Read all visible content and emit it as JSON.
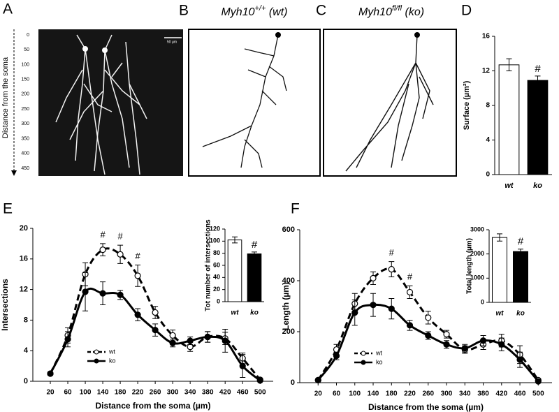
{
  "panels": {
    "A": {
      "label": "A",
      "axis_label": "Distance from the soma",
      "ticks": [
        0,
        50,
        100,
        150,
        200,
        250,
        300,
        350,
        400,
        450
      ],
      "scale_bar": "50 µm"
    },
    "B": {
      "label": "B",
      "title_gene": "Myh10",
      "title_sup": "+/+",
      "title_rest": " (wt)"
    },
    "C": {
      "label": "C",
      "title_gene": "Myh10",
      "title_sup": "fl/fl",
      "title_rest": " (ko)"
    }
  },
  "chart_data": [
    {
      "type": "bar",
      "panel": "D",
      "categories": [
        "wt",
        "ko"
      ],
      "values": [
        12.7,
        10.9
      ],
      "errors": [
        0.7,
        0.5
      ],
      "colors": [
        "#ffffff",
        "#000000"
      ],
      "ylim": [
        0,
        16
      ],
      "yticks": [
        0,
        4,
        8,
        12,
        16
      ],
      "ylabel": "Surface (µm²)",
      "annotations": [
        {
          "x": "ko",
          "text": "#"
        }
      ]
    },
    {
      "type": "line",
      "panel": "E",
      "x": [
        20,
        60,
        100,
        140,
        180,
        220,
        260,
        300,
        340,
        380,
        420,
        460,
        500
      ],
      "xlim": [
        -20,
        530
      ],
      "xticks": [
        20,
        60,
        100,
        140,
        180,
        220,
        260,
        300,
        340,
        380,
        420,
        460,
        500
      ],
      "ylim": [
        0,
        20
      ],
      "yticks": [
        0,
        4,
        8,
        12,
        16,
        20
      ],
      "xlabel": "Distance from the soma (µm)",
      "ylabel": "Intersections",
      "series": [
        {
          "name": "wt",
          "color": "#000000",
          "dashed": true,
          "marker_fill": "#ffffff",
          "values": [
            1,
            6,
            14,
            17.2,
            16.6,
            13.8,
            9,
            6,
            4.5,
            5.8,
            5.6,
            3,
            0.2
          ],
          "errors": [
            0.2,
            1,
            1.5,
            0.8,
            1.2,
            1.4,
            0.8,
            0.7,
            0.6,
            0.7,
            0.8,
            0.7,
            0.1
          ]
        },
        {
          "name": "ko",
          "color": "#000000",
          "dashed": false,
          "marker_fill": "#000000",
          "values": [
            1,
            5.5,
            11.7,
            11.5,
            11.3,
            8.7,
            6.7,
            5,
            5.3,
            5.8,
            5.3,
            2,
            0.1
          ],
          "errors": [
            0.2,
            1,
            2.5,
            1.5,
            0.6,
            0.8,
            0.8,
            0.5,
            0.5,
            0.7,
            1.5,
            1.5,
            0.1
          ]
        }
      ],
      "annotations": [
        {
          "x": 140,
          "text": "#"
        },
        {
          "x": 180,
          "text": "#"
        },
        {
          "x": 220,
          "text": "#"
        }
      ],
      "legend": "lower-left"
    },
    {
      "type": "bar",
      "categories": [
        "wt",
        "ko"
      ],
      "values": [
        102,
        79
      ],
      "errors": [
        5,
        3
      ],
      "colors": [
        "#ffffff",
        "#000000"
      ],
      "ylim": [
        0,
        120
      ],
      "yticks": [
        0,
        20,
        40,
        60,
        80,
        100,
        120
      ],
      "ylabel": "Tot number of intersections",
      "annotations": [
        {
          "x": "ko",
          "text": "#"
        }
      ]
    },
    {
      "type": "line",
      "panel": "F",
      "x": [
        20,
        60,
        100,
        140,
        180,
        220,
        260,
        300,
        340,
        380,
        420,
        460,
        500
      ],
      "xlim": [
        -20,
        530
      ],
      "xticks": [
        20,
        60,
        100,
        140,
        180,
        220,
        260,
        300,
        340,
        380,
        420,
        460,
        500
      ],
      "ylim": [
        0,
        600
      ],
      "yticks": [
        0,
        200,
        400,
        600
      ],
      "xlabel": "Distance from the soma (µm)",
      "ylabel": "Length (µm)",
      "series": [
        {
          "name": "wt",
          "color": "#000000",
          "dashed": true,
          "marker_fill": "#ffffff",
          "values": [
            10,
            130,
            310,
            410,
            445,
            355,
            255,
            190,
            130,
            150,
            165,
            110,
            10
          ],
          "errors": [
            5,
            20,
            40,
            25,
            30,
            25,
            25,
            15,
            15,
            20,
            25,
            35,
            5
          ]
        },
        {
          "name": "ko",
          "color": "#000000",
          "dashed": false,
          "marker_fill": "#000000",
          "values": [
            10,
            105,
            275,
            305,
            290,
            225,
            185,
            150,
            135,
            165,
            150,
            90,
            5
          ],
          "errors": [
            5,
            15,
            50,
            45,
            40,
            20,
            15,
            15,
            15,
            20,
            25,
            30,
            5
          ]
        }
      ],
      "annotations": [
        {
          "x": 180,
          "text": "#"
        },
        {
          "x": 220,
          "text": "#"
        }
      ],
      "legend": "lower-left"
    },
    {
      "type": "bar",
      "categories": [
        "wt",
        "ko"
      ],
      "values": [
        2680,
        2100
      ],
      "errors": [
        150,
        100
      ],
      "colors": [
        "#ffffff",
        "#000000"
      ],
      "ylim": [
        0,
        3000
      ],
      "yticks": [
        0,
        1000,
        2000,
        3000
      ],
      "ylabel": "Total length (µm)",
      "annotations": [
        {
          "x": "ko",
          "text": "#"
        }
      ]
    }
  ]
}
